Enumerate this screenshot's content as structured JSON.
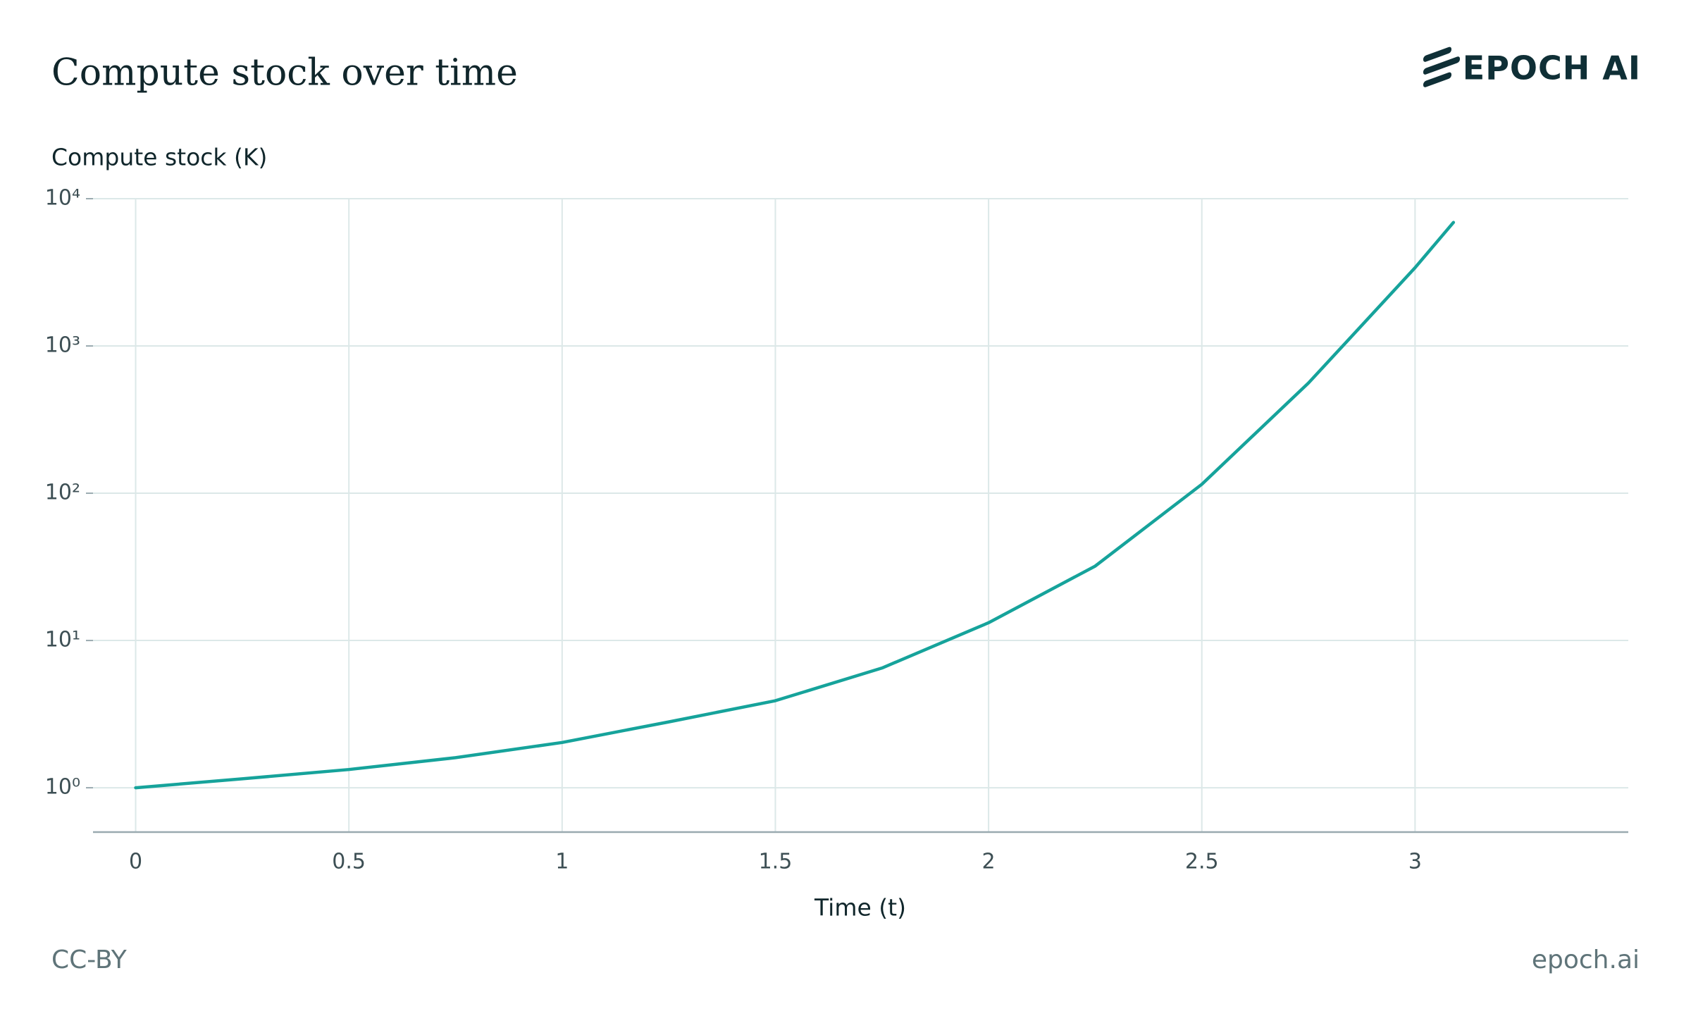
{
  "chart_data": {
    "type": "line",
    "title": "Compute stock over time",
    "brand": "EPOCH AI",
    "y_label": "Compute stock (K)",
    "x_label": "Time (t)",
    "license": "CC-BY",
    "footer_url": "epoch.ai",
    "y_scale": "log",
    "grid": true,
    "xlim": [
      -0.1,
      3.5
    ],
    "ylim": [
      0.5,
      10000
    ],
    "xticks": [
      0,
      0.5,
      1,
      1.5,
      2,
      2.5,
      3
    ],
    "yticks": [
      {
        "value": 1,
        "label": "10⁰"
      },
      {
        "value": 10,
        "label": "10¹"
      },
      {
        "value": 100,
        "label": "10²"
      },
      {
        "value": 1000,
        "label": "10³"
      },
      {
        "value": 10000,
        "label": "10⁴"
      }
    ],
    "series": [
      {
        "name": "Compute stock",
        "color": "#16a39b",
        "x": [
          0,
          0.25,
          0.5,
          0.75,
          1,
          1.25,
          1.5,
          1.75,
          2,
          2.25,
          2.5,
          2.75,
          3,
          3.09
        ],
        "values": [
          1,
          1.15,
          1.33,
          1.6,
          2.03,
          2.8,
          3.9,
          6.5,
          13.2,
          32,
          115,
          560,
          3400,
          6900
        ]
      }
    ]
  }
}
